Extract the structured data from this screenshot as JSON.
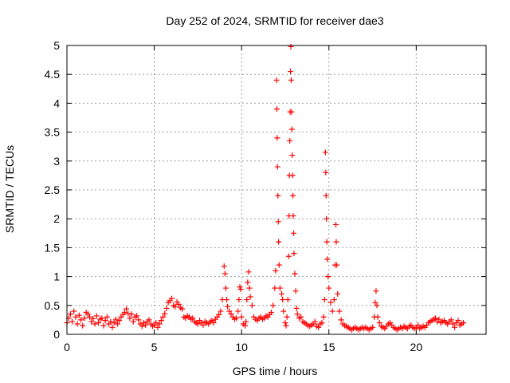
{
  "chart_data": {
    "type": "scatter",
    "title": "Day 252 of 2024, SRMTID for receiver dae3",
    "xlabel": "GPS time / hours",
    "ylabel": "SRMTID / TECUs",
    "xlim": [
      0,
      24
    ],
    "ylim": [
      0,
      5
    ],
    "x_ticks": [
      0,
      5,
      10,
      15,
      20
    ],
    "y_ticks": [
      0,
      0.5,
      1,
      1.5,
      2,
      2.5,
      3,
      3.5,
      4,
      4.5,
      5
    ],
    "x_tick_labels": [
      "0",
      "5",
      "10",
      "15",
      "20"
    ],
    "y_tick_labels": [
      "0",
      "0.5",
      "1",
      "1.5",
      "2",
      "2.5",
      "3",
      "3.5",
      "4",
      "4.5",
      "5"
    ],
    "grid": true,
    "marker": "plus",
    "color": "#ff0000",
    "series": [
      {
        "name": "SRMTID",
        "points": [
          [
            0.0,
            0.2
          ],
          [
            0.1,
            0.28
          ],
          [
            0.2,
            0.35
          ],
          [
            0.3,
            0.22
          ],
          [
            0.4,
            0.4
          ],
          [
            0.5,
            0.3
          ],
          [
            0.6,
            0.18
          ],
          [
            0.7,
            0.33
          ],
          [
            0.8,
            0.25
          ],
          [
            0.9,
            0.15
          ],
          [
            1.0,
            0.28
          ],
          [
            1.1,
            0.38
          ],
          [
            1.2,
            0.35
          ],
          [
            1.3,
            0.3
          ],
          [
            1.4,
            0.22
          ],
          [
            1.5,
            0.27
          ],
          [
            1.6,
            0.18
          ],
          [
            1.7,
            0.32
          ],
          [
            1.8,
            0.2
          ],
          [
            1.9,
            0.26
          ],
          [
            2.0,
            0.28
          ],
          [
            2.1,
            0.15
          ],
          [
            2.2,
            0.24
          ],
          [
            2.3,
            0.3
          ],
          [
            2.4,
            0.18
          ],
          [
            2.5,
            0.22
          ],
          [
            2.6,
            0.12
          ],
          [
            2.7,
            0.2
          ],
          [
            2.8,
            0.26
          ],
          [
            2.9,
            0.18
          ],
          [
            3.0,
            0.24
          ],
          [
            3.1,
            0.3
          ],
          [
            3.2,
            0.34
          ],
          [
            3.3,
            0.38
          ],
          [
            3.4,
            0.44
          ],
          [
            3.5,
            0.36
          ],
          [
            3.6,
            0.28
          ],
          [
            3.7,
            0.35
          ],
          [
            3.8,
            0.22
          ],
          [
            3.9,
            0.3
          ],
          [
            4.0,
            0.32
          ],
          [
            4.1,
            0.25
          ],
          [
            4.2,
            0.18
          ],
          [
            4.3,
            0.14
          ],
          [
            4.4,
            0.2
          ],
          [
            4.5,
            0.16
          ],
          [
            4.6,
            0.22
          ],
          [
            4.7,
            0.25
          ],
          [
            4.8,
            0.18
          ],
          [
            4.9,
            0.14
          ],
          [
            5.0,
            0.16
          ],
          [
            5.1,
            0.2
          ],
          [
            5.2,
            0.12
          ],
          [
            5.3,
            0.18
          ],
          [
            5.4,
            0.24
          ],
          [
            5.5,
            0.3
          ],
          [
            5.6,
            0.36
          ],
          [
            5.7,
            0.45
          ],
          [
            5.8,
            0.55
          ],
          [
            5.9,
            0.58
          ],
          [
            6.0,
            0.62
          ],
          [
            6.1,
            0.5
          ],
          [
            6.2,
            0.48
          ],
          [
            6.3,
            0.56
          ],
          [
            6.4,
            0.52
          ],
          [
            6.5,
            0.46
          ],
          [
            6.6,
            0.44
          ],
          [
            6.7,
            0.3
          ],
          [
            6.8,
            0.28
          ],
          [
            6.9,
            0.32
          ],
          [
            7.0,
            0.3
          ],
          [
            7.1,
            0.26
          ],
          [
            7.2,
            0.28
          ],
          [
            7.3,
            0.22
          ],
          [
            7.4,
            0.2
          ],
          [
            7.5,
            0.18
          ],
          [
            7.6,
            0.24
          ],
          [
            7.7,
            0.2
          ],
          [
            7.8,
            0.16
          ],
          [
            7.9,
            0.22
          ],
          [
            8.0,
            0.2
          ],
          [
            8.1,
            0.18
          ],
          [
            8.2,
            0.22
          ],
          [
            8.3,
            0.24
          ],
          [
            8.4,
            0.2
          ],
          [
            8.5,
            0.26
          ],
          [
            8.6,
            0.3
          ],
          [
            8.7,
            0.34
          ],
          [
            8.8,
            0.4
          ],
          [
            8.9,
            0.6
          ],
          [
            9.0,
            1.18
          ],
          [
            9.05,
            1.05
          ],
          [
            9.1,
            0.8
          ],
          [
            9.15,
            0.6
          ],
          [
            9.2,
            0.48
          ],
          [
            9.3,
            0.4
          ],
          [
            9.4,
            0.35
          ],
          [
            9.5,
            0.3
          ],
          [
            9.6,
            0.26
          ],
          [
            9.7,
            0.28
          ],
          [
            9.8,
            0.4
          ],
          [
            9.85,
            0.6
          ],
          [
            9.9,
            0.82
          ],
          [
            9.95,
            0.78
          ],
          [
            10.0,
            0.3
          ],
          [
            10.1,
            0.18
          ],
          [
            10.2,
            0.15
          ],
          [
            10.25,
            0.22
          ],
          [
            10.3,
            0.6
          ],
          [
            10.35,
            0.9
          ],
          [
            10.4,
            1.08
          ],
          [
            10.45,
            0.8
          ],
          [
            10.5,
            0.65
          ],
          [
            10.6,
            0.5
          ],
          [
            10.7,
            0.3
          ],
          [
            10.8,
            0.26
          ],
          [
            10.9,
            0.24
          ],
          [
            11.0,
            0.28
          ],
          [
            11.1,
            0.3
          ],
          [
            11.2,
            0.26
          ],
          [
            11.3,
            0.28
          ],
          [
            11.4,
            0.32
          ],
          [
            11.5,
            0.3
          ],
          [
            11.6,
            0.34
          ],
          [
            11.7,
            0.38
          ],
          [
            11.8,
            0.5
          ],
          [
            11.9,
            0.8
          ],
          [
            11.95,
            1.1
          ],
          [
            12.0,
            4.4
          ],
          [
            12.02,
            3.9
          ],
          [
            12.04,
            3.4
          ],
          [
            12.06,
            2.9
          ],
          [
            12.08,
            2.4
          ],
          [
            12.1,
            1.95
          ],
          [
            12.12,
            1.6
          ],
          [
            12.15,
            1.2
          ],
          [
            12.2,
            0.8
          ],
          [
            12.3,
            0.7
          ],
          [
            12.35,
            0.6
          ],
          [
            12.4,
            0.4
          ],
          [
            12.5,
            0.2
          ],
          [
            12.55,
            0.15
          ],
          [
            12.6,
            0.3
          ],
          [
            12.65,
            0.6
          ],
          [
            12.7,
            1.35
          ],
          [
            12.72,
            2.05
          ],
          [
            12.74,
            2.75
          ],
          [
            12.76,
            3.35
          ],
          [
            12.78,
            3.85
          ],
          [
            12.8,
            4.55
          ],
          [
            12.82,
            4.98
          ],
          [
            12.84,
            4.4
          ],
          [
            12.86,
            3.85
          ],
          [
            12.88,
            3.55
          ],
          [
            12.9,
            3.1
          ],
          [
            12.92,
            2.75
          ],
          [
            12.94,
            2.4
          ],
          [
            12.96,
            2.05
          ],
          [
            12.98,
            1.75
          ],
          [
            13.0,
            1.4
          ],
          [
            13.05,
            1.05
          ],
          [
            13.1,
            0.75
          ],
          [
            13.15,
            0.45
          ],
          [
            13.2,
            0.35
          ],
          [
            13.3,
            0.28
          ],
          [
            13.4,
            0.3
          ],
          [
            13.5,
            0.22
          ],
          [
            13.6,
            0.2
          ],
          [
            13.7,
            0.18
          ],
          [
            13.8,
            0.15
          ],
          [
            13.9,
            0.14
          ],
          [
            14.0,
            0.16
          ],
          [
            14.1,
            0.18
          ],
          [
            14.2,
            0.22
          ],
          [
            14.3,
            0.14
          ],
          [
            14.4,
            0.12
          ],
          [
            14.5,
            0.18
          ],
          [
            14.6,
            0.2
          ],
          [
            14.7,
            0.3
          ],
          [
            14.75,
            0.6
          ],
          [
            14.8,
            3.15
          ],
          [
            14.82,
            2.8
          ],
          [
            14.84,
            2.4
          ],
          [
            14.86,
            2.0
          ],
          [
            14.88,
            1.6
          ],
          [
            14.9,
            1.3
          ],
          [
            14.95,
            1.0
          ],
          [
            15.0,
            0.8
          ],
          [
            15.1,
            0.55
          ],
          [
            15.2,
            0.4
          ],
          [
            15.3,
            0.6
          ],
          [
            15.35,
            1.2
          ],
          [
            15.4,
            1.9
          ],
          [
            15.42,
            1.6
          ],
          [
            15.45,
            1.2
          ],
          [
            15.5,
            0.7
          ],
          [
            15.6,
            0.4
          ],
          [
            15.7,
            0.25
          ],
          [
            15.8,
            0.18
          ],
          [
            15.9,
            0.15
          ],
          [
            16.0,
            0.14
          ],
          [
            16.1,
            0.12
          ],
          [
            16.2,
            0.1
          ],
          [
            16.3,
            0.08
          ],
          [
            16.4,
            0.1
          ],
          [
            16.5,
            0.12
          ],
          [
            16.6,
            0.1
          ],
          [
            16.7,
            0.08
          ],
          [
            16.8,
            0.1
          ],
          [
            16.9,
            0.12
          ],
          [
            17.0,
            0.1
          ],
          [
            17.1,
            0.12
          ],
          [
            17.2,
            0.1
          ],
          [
            17.3,
            0.08
          ],
          [
            17.4,
            0.1
          ],
          [
            17.5,
            0.12
          ],
          [
            17.6,
            0.3
          ],
          [
            17.65,
            0.55
          ],
          [
            17.7,
            0.75
          ],
          [
            17.75,
            0.5
          ],
          [
            17.8,
            0.3
          ],
          [
            17.9,
            0.2
          ],
          [
            18.0,
            0.14
          ],
          [
            18.1,
            0.12
          ],
          [
            18.2,
            0.1
          ],
          [
            18.3,
            0.14
          ],
          [
            18.4,
            0.18
          ],
          [
            18.5,
            0.2
          ],
          [
            18.6,
            0.16
          ],
          [
            18.7,
            0.12
          ],
          [
            18.8,
            0.1
          ],
          [
            18.9,
            0.08
          ],
          [
            19.0,
            0.1
          ],
          [
            19.1,
            0.12
          ],
          [
            19.2,
            0.1
          ],
          [
            19.3,
            0.14
          ],
          [
            19.4,
            0.12
          ],
          [
            19.5,
            0.1
          ],
          [
            19.6,
            0.14
          ],
          [
            19.7,
            0.16
          ],
          [
            19.8,
            0.12
          ],
          [
            19.9,
            0.1
          ],
          [
            20.0,
            0.12
          ],
          [
            20.1,
            0.16
          ],
          [
            20.2,
            0.1
          ],
          [
            20.3,
            0.12
          ],
          [
            20.4,
            0.14
          ],
          [
            20.5,
            0.12
          ],
          [
            20.6,
            0.16
          ],
          [
            20.7,
            0.2
          ],
          [
            20.8,
            0.22
          ],
          [
            20.9,
            0.24
          ],
          [
            21.0,
            0.26
          ],
          [
            21.1,
            0.28
          ],
          [
            21.2,
            0.22
          ],
          [
            21.3,
            0.26
          ],
          [
            21.4,
            0.2
          ],
          [
            21.5,
            0.22
          ],
          [
            21.6,
            0.24
          ],
          [
            21.7,
            0.2
          ],
          [
            21.8,
            0.18
          ],
          [
            21.9,
            0.22
          ],
          [
            22.0,
            0.25
          ],
          [
            22.1,
            0.18
          ],
          [
            22.2,
            0.12
          ],
          [
            22.3,
            0.2
          ],
          [
            22.4,
            0.24
          ],
          [
            22.5,
            0.16
          ],
          [
            22.6,
            0.18
          ],
          [
            22.7,
            0.2
          ]
        ]
      }
    ]
  }
}
